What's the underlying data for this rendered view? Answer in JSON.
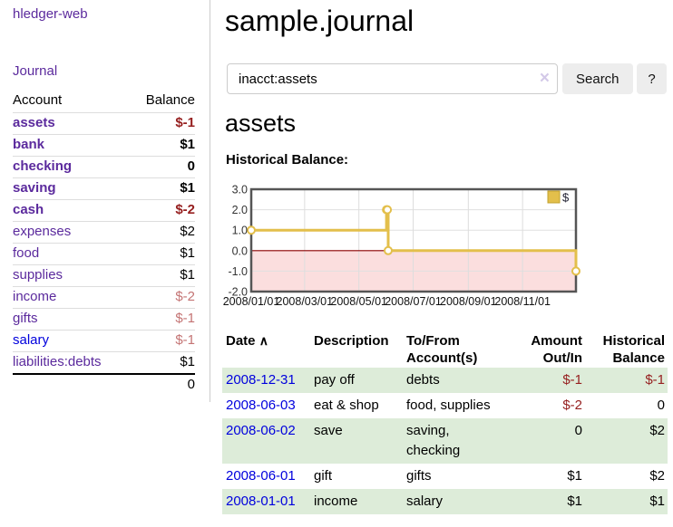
{
  "sidebar": {
    "brand": "hledger-web",
    "nav": {
      "journal": "Journal"
    },
    "accounts_table": {
      "headers": {
        "account": "Account",
        "balance": "Balance"
      },
      "rows": [
        {
          "name": "assets",
          "indent": 0,
          "bold": true,
          "balance": "$-1",
          "balance_style": "neg-strong"
        },
        {
          "name": "bank",
          "indent": 1,
          "bold": true,
          "balance": "$1",
          "balance_style": "pos"
        },
        {
          "name": "checking",
          "indent": 2,
          "bold": true,
          "balance": "0",
          "balance_style": "pos"
        },
        {
          "name": "saving",
          "indent": 2,
          "bold": true,
          "balance": "$1",
          "balance_style": "pos"
        },
        {
          "name": "cash",
          "indent": 1,
          "bold": true,
          "balance": "$-2",
          "balance_style": "neg-strong"
        },
        {
          "name": "expenses",
          "indent": 0,
          "bold": false,
          "balance": "$2",
          "balance_style": "pos"
        },
        {
          "name": "food",
          "indent": 1,
          "bold": false,
          "balance": "$1",
          "balance_style": "pos"
        },
        {
          "name": "supplies",
          "indent": 1,
          "bold": false,
          "balance": "$1",
          "balance_style": "pos"
        },
        {
          "name": "income",
          "indent": 0,
          "bold": false,
          "balance": "$-2",
          "balance_style": "neg-soft"
        },
        {
          "name": "gifts",
          "indent": 1,
          "bold": false,
          "balance": "$-1",
          "balance_style": "neg-soft"
        },
        {
          "name": "salary",
          "indent": 1,
          "bold": false,
          "link_style": "unvisited",
          "balance": "$-1",
          "balance_style": "neg-soft"
        },
        {
          "name": "liabilities:debts",
          "indent": 0,
          "bold": false,
          "balance": "$1",
          "balance_style": "pos"
        }
      ],
      "total": "0"
    }
  },
  "header": {
    "title": "sample.journal"
  },
  "search": {
    "value": "inacct:assets",
    "clear_icon": "×",
    "button": "Search",
    "help_button": "?"
  },
  "account_page": {
    "title": "assets",
    "chart_label": "Historical Balance:"
  },
  "chart_data": {
    "type": "line",
    "title": "Historical Balance:",
    "x_domain": [
      "2008-01-01",
      "2008-12-31"
    ],
    "ylim": [
      -2.0,
      3.0
    ],
    "yticks": [
      "3.0",
      "2.0",
      "1.0",
      "0.0",
      "-1.0",
      "-2.0"
    ],
    "xticks": [
      "2008/01/01",
      "2008/03/01",
      "2008/05/01",
      "2008/07/01",
      "2008/09/01",
      "2008/11/01"
    ],
    "series": [
      {
        "name": "$",
        "step": true,
        "points": [
          [
            "2008-01-01",
            1
          ],
          [
            "2008-06-01",
            2
          ],
          [
            "2008-06-02",
            2
          ],
          [
            "2008-06-03",
            0
          ],
          [
            "2008-12-31",
            -1
          ]
        ]
      }
    ],
    "legend_position": "top-right",
    "grid": true,
    "line_color": "#e3bf4b",
    "marker_fill": "#ffffff",
    "zero_line_color": "#8b0000",
    "negative_region_color": "#fbdede"
  },
  "register_table": {
    "headers": {
      "date": "Date",
      "sort_icon": "∧",
      "description": "Description",
      "account": "To/From\nAccount(s)",
      "amount": "Amount\nOut/In",
      "balance": "Historical\nBalance"
    },
    "rows": [
      {
        "date": "2008-12-31",
        "description": "pay off",
        "accounts": "debts",
        "amount": "$-1",
        "amount_neg": true,
        "balance": "$-1",
        "balance_neg": true
      },
      {
        "date": "2008-06-03",
        "description": "eat & shop",
        "accounts": "food, supplies",
        "amount": "$-2",
        "amount_neg": true,
        "balance": "0",
        "balance_neg": false
      },
      {
        "date": "2008-06-02",
        "description": "save",
        "accounts": "saving,\nchecking",
        "amount": "0",
        "amount_neg": false,
        "balance": "$2",
        "balance_neg": false
      },
      {
        "date": "2008-06-01",
        "description": "gift",
        "accounts": "gifts",
        "amount": "$1",
        "amount_neg": false,
        "balance": "$2",
        "balance_neg": false
      },
      {
        "date": "2008-01-01",
        "description": "income",
        "accounts": "salary",
        "amount": "$1",
        "amount_neg": false,
        "balance": "$1",
        "balance_neg": false
      }
    ]
  },
  "colors": {
    "link_visited": "#5b2a9d",
    "link_unvisited": "#0000dd",
    "negative_strong": "#962020",
    "negative_soft": "#c47474",
    "row_stripe": "#ddecd9",
    "chart_line": "#e3bf4b",
    "chart_negative_fill": "#fbdede",
    "chart_zero_line": "#8b0000"
  }
}
